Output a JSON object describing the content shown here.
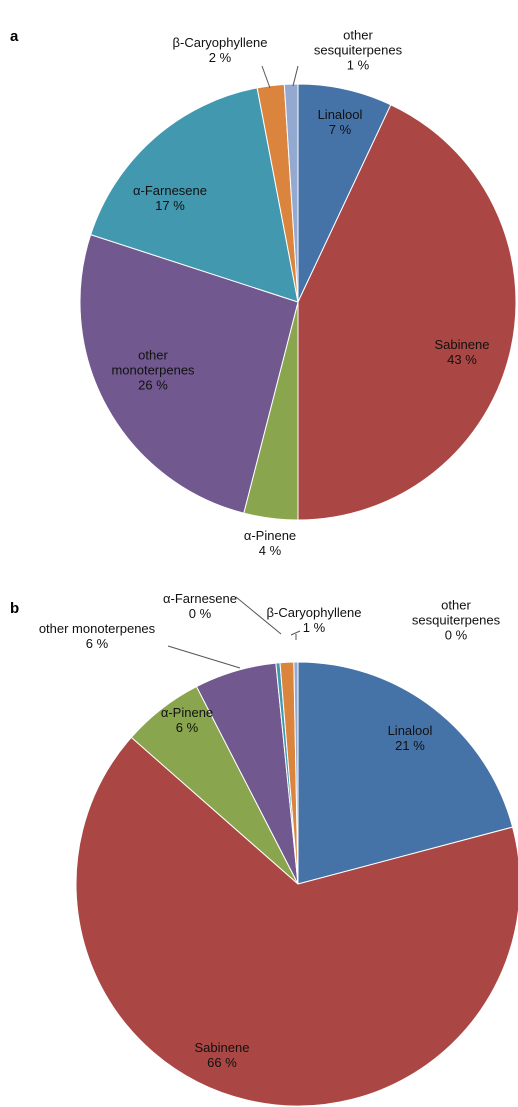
{
  "chart_data": [
    {
      "type": "pie",
      "title": "a",
      "categories": [
        "Linalool",
        "Sabinene",
        "α-Pinene",
        "other monoterpenes",
        "α-Farnesene",
        "β-Caryophyllene",
        "other sesquiterpenes"
      ],
      "values": [
        7,
        43,
        4,
        26,
        17,
        2,
        1
      ],
      "value_labels": [
        "7 %",
        "43 %",
        "4 %",
        "26 %",
        "17 %",
        "2 %",
        "1 %"
      ],
      "colors": [
        "#4572a7",
        "#aa4643",
        "#89a54e",
        "#71588f",
        "#4198af",
        "#db843d",
        "#93a9cf"
      ]
    },
    {
      "type": "pie",
      "title": "b",
      "categories": [
        "Linalool",
        "Sabinene",
        "α-Pinene",
        "other monoterpenes",
        "α-Farnesene",
        "β-Caryophyllene",
        "other sesquiterpenes"
      ],
      "values": [
        21,
        66,
        6,
        6,
        0.3,
        1,
        0.3
      ],
      "value_labels": [
        "21 %",
        "66 %",
        "6 %",
        "6 %",
        "0 %",
        "1 %",
        "0 %"
      ],
      "colors": [
        "#4572a7",
        "#aa4643",
        "#89a54e",
        "#71588f",
        "#4198af",
        "#db843d",
        "#93a9cf"
      ]
    }
  ]
}
